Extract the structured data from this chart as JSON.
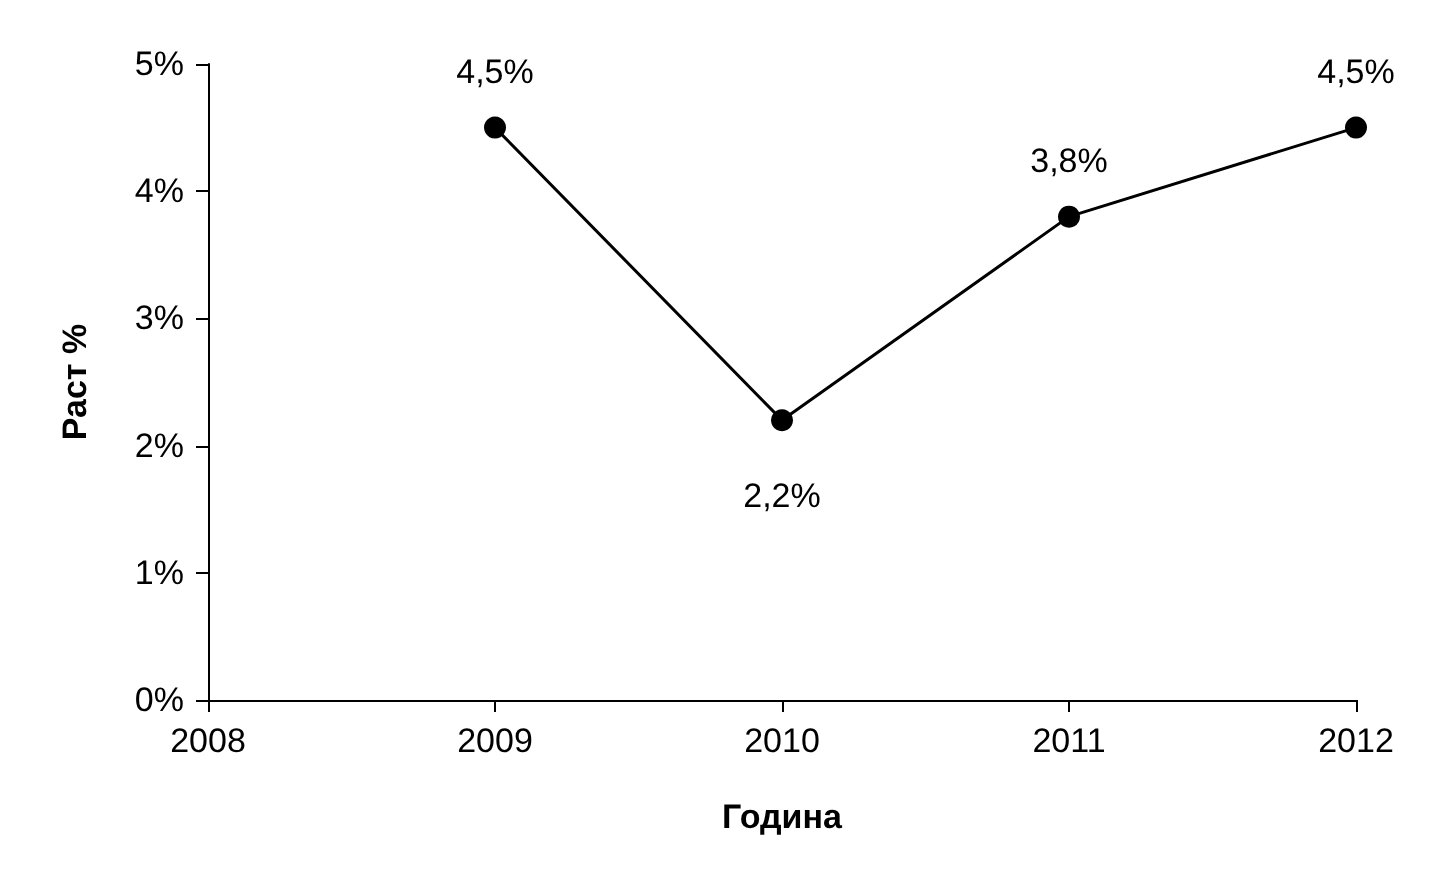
{
  "chart_data": {
    "type": "line",
    "xlabel": "Година",
    "ylabel": "Раст %",
    "x": [
      2009,
      2010,
      2011,
      2012
    ],
    "series": [
      {
        "color": "#000000",
        "values": [
          4.5,
          2.2,
          3.8,
          4.5
        ],
        "value_labels": [
          "4,5%",
          "2,2%",
          "3,8%",
          "4,5%"
        ]
      }
    ],
    "xlim": [
      2008,
      2012
    ],
    "xticks": [
      2008,
      2009,
      2010,
      2011,
      2012
    ],
    "ylim": [
      0,
      5
    ],
    "yticks": [
      {
        "value": 0,
        "label": "0%"
      },
      {
        "value": 1,
        "label": "1%"
      },
      {
        "value": 2,
        "label": "2%"
      },
      {
        "value": 3,
        "label": "3%"
      },
      {
        "value": 4,
        "label": "4%"
      },
      {
        "value": 5,
        "label": "5%"
      }
    ],
    "grid": false,
    "marker": "circle",
    "line_style": "solid"
  }
}
